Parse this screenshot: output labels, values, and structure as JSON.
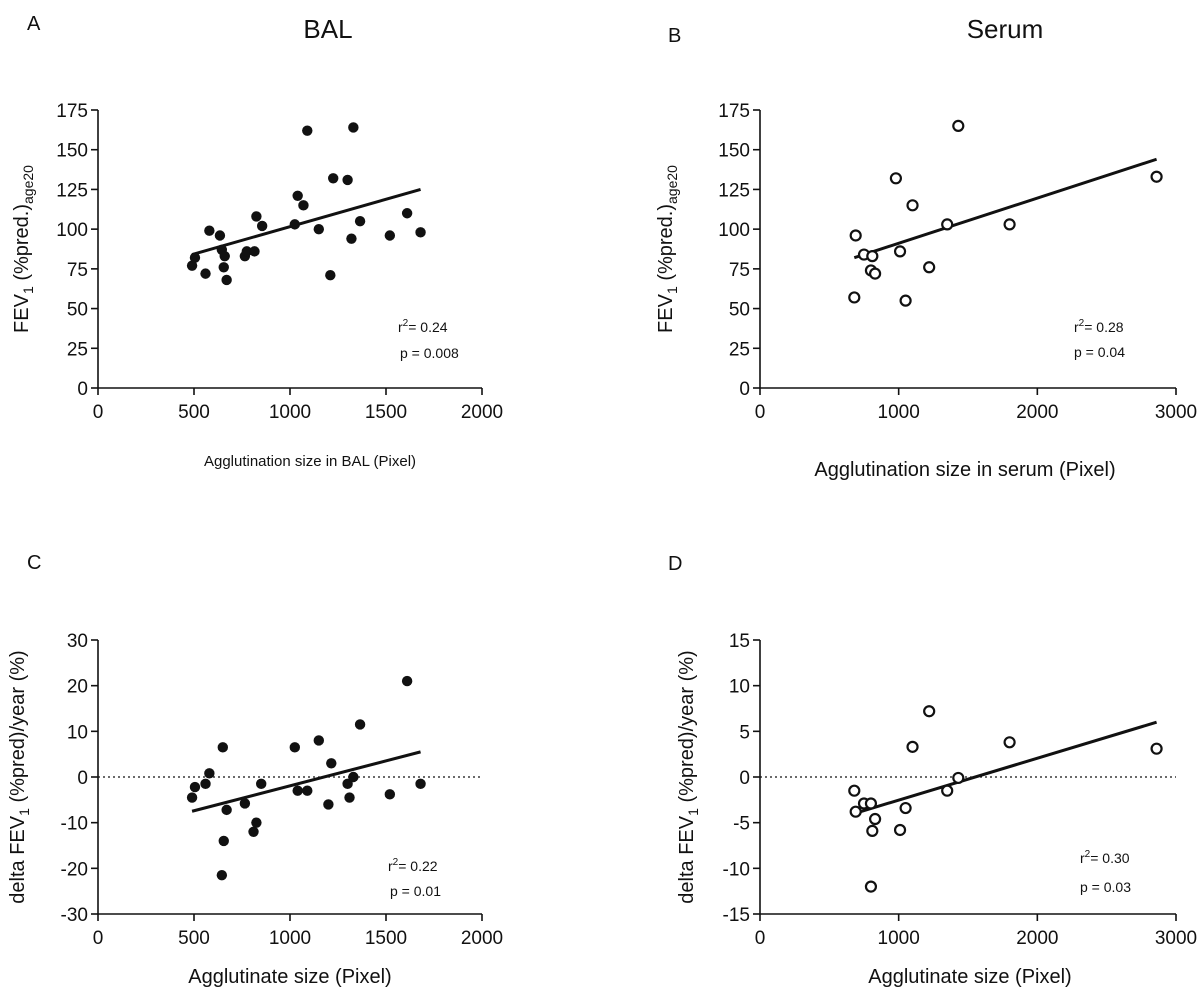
{
  "chart_data": [
    {
      "panel": "A",
      "title": "BAL",
      "type": "scatter",
      "marker": "filled",
      "xlabel": "Agglutination size in BAL (Pixel)",
      "ylabel_main": "FEV",
      "ylabel_sub": "1",
      "ylabel_rest": " (%pred.)",
      "ylabel_sub2": "age20",
      "xlim": [
        0,
        2000
      ],
      "ylim": [
        0,
        175
      ],
      "xticks": [
        0,
        500,
        1000,
        1500,
        2000
      ],
      "yticks": [
        0,
        25,
        50,
        75,
        100,
        125,
        150,
        175
      ],
      "zero_line": false,
      "points": [
        [
          490,
          77
        ],
        [
          505,
          82
        ],
        [
          560,
          72
        ],
        [
          580,
          99
        ],
        [
          635,
          96
        ],
        [
          645,
          87
        ],
        [
          655,
          76
        ],
        [
          660,
          83
        ],
        [
          670,
          68
        ],
        [
          765,
          83
        ],
        [
          775,
          86
        ],
        [
          815,
          86
        ],
        [
          825,
          108
        ],
        [
          855,
          102
        ],
        [
          1025,
          103
        ],
        [
          1040,
          121
        ],
        [
          1070,
          115
        ],
        [
          1090,
          162
        ],
        [
          1150,
          100
        ],
        [
          1210,
          71
        ],
        [
          1225,
          132
        ],
        [
          1300,
          131
        ],
        [
          1320,
          94
        ],
        [
          1330,
          164
        ],
        [
          1365,
          105
        ],
        [
          1520,
          96
        ],
        [
          1610,
          110
        ],
        [
          1680,
          98
        ]
      ],
      "fit": {
        "x": [
          490,
          1680
        ],
        "y": [
          84,
          125
        ]
      },
      "stats": {
        "r2_label": "r",
        "r2_sup": "2",
        "r2_value": "= 0.24",
        "p": "p = 0.008"
      }
    },
    {
      "panel": "B",
      "title": "Serum",
      "type": "scatter",
      "marker": "open",
      "xlabel": "Agglutination size in serum (Pixel)",
      "ylabel_main": "FEV",
      "ylabel_sub": "1",
      "ylabel_rest": " (%pred.)",
      "ylabel_sub2": "age20",
      "xlim": [
        0,
        3000
      ],
      "ylim": [
        0,
        175
      ],
      "xticks": [
        0,
        1000,
        2000,
        3000
      ],
      "yticks": [
        0,
        25,
        50,
        75,
        100,
        125,
        150,
        175
      ],
      "zero_line": false,
      "points": [
        [
          680,
          57
        ],
        [
          690,
          96
        ],
        [
          750,
          84
        ],
        [
          800,
          74
        ],
        [
          810,
          83
        ],
        [
          830,
          72
        ],
        [
          980,
          132
        ],
        [
          1010,
          86
        ],
        [
          1050,
          55
        ],
        [
          1100,
          115
        ],
        [
          1220,
          76
        ],
        [
          1350,
          103
        ],
        [
          1430,
          165
        ],
        [
          1800,
          103
        ],
        [
          2860,
          133
        ]
      ],
      "fit": {
        "x": [
          680,
          2860
        ],
        "y": [
          82,
          144
        ]
      },
      "stats": {
        "r2_label": "r",
        "r2_sup": "2",
        "r2_value": "= 0.28",
        "p": "p = 0.04"
      }
    },
    {
      "panel": "C",
      "title": "",
      "type": "scatter",
      "marker": "filled",
      "xlabel": "Agglutinate size (Pixel)",
      "ylabel_main": "delta FEV",
      "ylabel_sub": "1",
      "ylabel_rest": " (%pred)/year (%)",
      "ylabel_sub2": "",
      "xlim": [
        0,
        2000
      ],
      "ylim": [
        -30,
        30
      ],
      "xticks": [
        0,
        500,
        1000,
        1500,
        2000
      ],
      "yticks": [
        -30,
        -20,
        -10,
        0,
        10,
        20,
        30
      ],
      "zero_line": true,
      "points": [
        [
          490,
          -4.5
        ],
        [
          505,
          -2.2
        ],
        [
          560,
          -1.5
        ],
        [
          580,
          0.8
        ],
        [
          645,
          -21.5
        ],
        [
          650,
          6.5
        ],
        [
          655,
          -14
        ],
        [
          670,
          -7.2
        ],
        [
          765,
          -5.8
        ],
        [
          810,
          -12
        ],
        [
          825,
          -10
        ],
        [
          850,
          -1.5
        ],
        [
          1025,
          6.5
        ],
        [
          1040,
          -3
        ],
        [
          1090,
          -3
        ],
        [
          1150,
          8
        ],
        [
          1200,
          -6
        ],
        [
          1215,
          3
        ],
        [
          1300,
          -1.5
        ],
        [
          1310,
          -4.5
        ],
        [
          1330,
          0
        ],
        [
          1365,
          11.5
        ],
        [
          1520,
          -3.8
        ],
        [
          1610,
          21
        ],
        [
          1680,
          -1.5
        ]
      ],
      "fit": {
        "x": [
          490,
          1680
        ],
        "y": [
          -7.5,
          5.5
        ]
      },
      "stats": {
        "r2_label": "r",
        "r2_sup": "2",
        "r2_value": "= 0.22",
        "p": "p = 0.01"
      }
    },
    {
      "panel": "D",
      "title": "",
      "type": "scatter",
      "marker": "open",
      "xlabel": "Agglutinate size (Pixel)",
      "ylabel_main": "delta FEV",
      "ylabel_sub": "1",
      "ylabel_rest": " (%pred)/year (%)",
      "ylabel_sub2": "",
      "xlim": [
        0,
        3000
      ],
      "ylim": [
        -15,
        15
      ],
      "xticks": [
        0,
        1000,
        2000,
        3000
      ],
      "yticks": [
        -15,
        -10,
        -5,
        0,
        5,
        10,
        15
      ],
      "zero_line": true,
      "points": [
        [
          680,
          -1.5
        ],
        [
          690,
          -3.8
        ],
        [
          750,
          -2.9
        ],
        [
          800,
          -2.9
        ],
        [
          810,
          -5.9
        ],
        [
          830,
          -4.6
        ],
        [
          800,
          -12
        ],
        [
          1010,
          -5.8
        ],
        [
          1050,
          -3.4
        ],
        [
          1100,
          3.3
        ],
        [
          1220,
          7.2
        ],
        [
          1350,
          -1.5
        ],
        [
          1430,
          -0.1
        ],
        [
          1800,
          3.8
        ],
        [
          2860,
          3.1
        ]
      ],
      "fit": {
        "x": [
          680,
          2860
        ],
        "y": [
          -4,
          6
        ]
      },
      "stats": {
        "r2_label": "r",
        "r2_sup": "2",
        "r2_value": "= 0.30",
        "p": "p = 0.03"
      }
    }
  ]
}
